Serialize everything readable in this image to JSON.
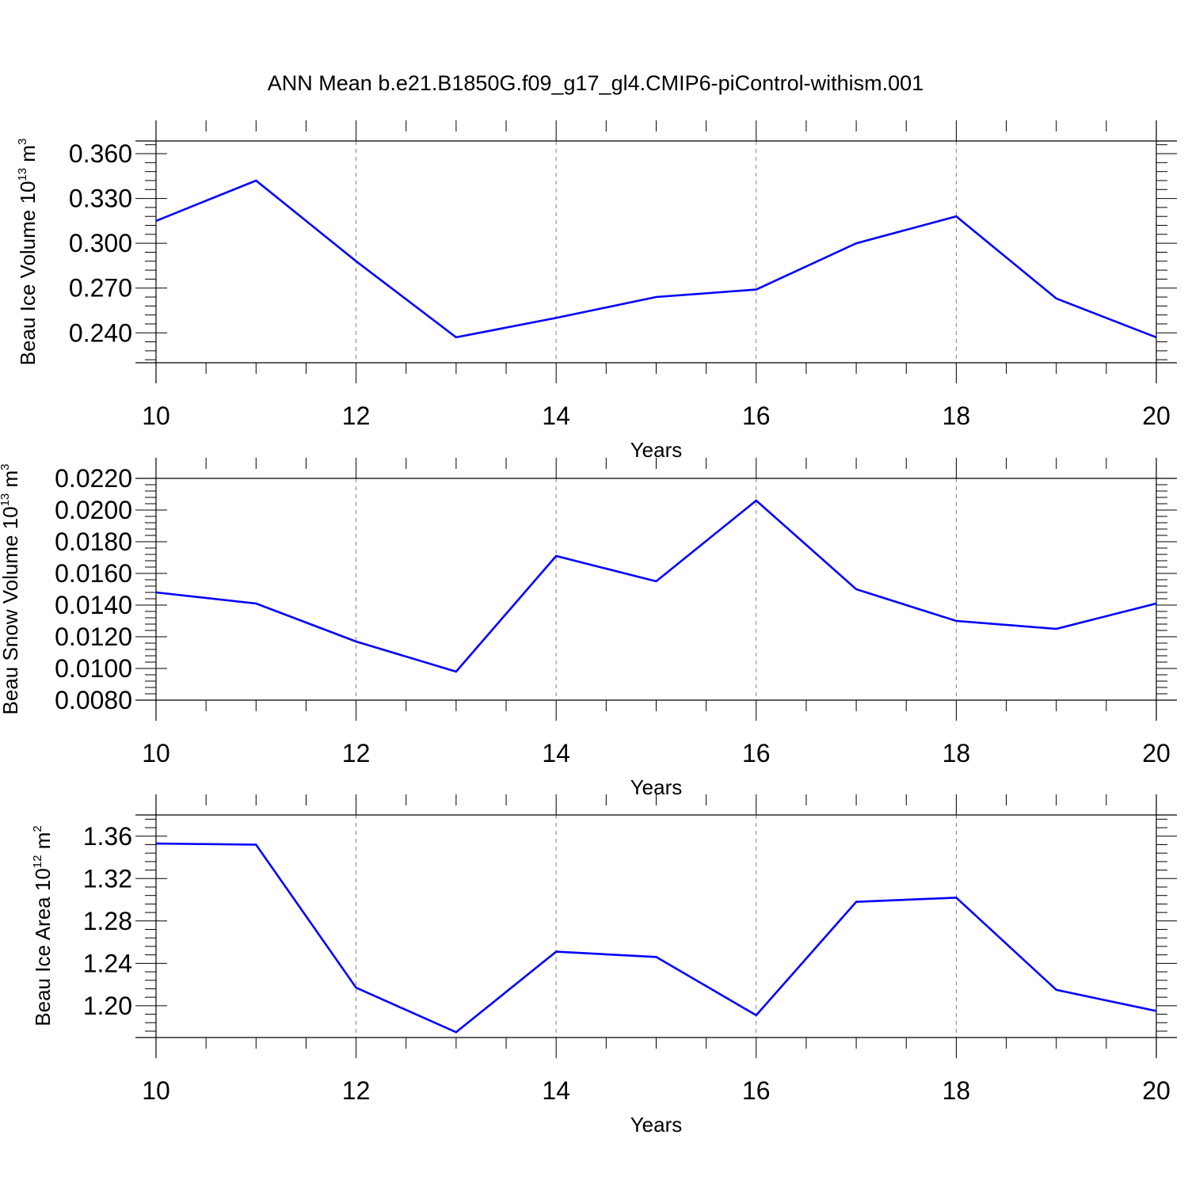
{
  "figure_title": "ANN Mean b.e21.B1850G.f09_g17_gl4.CMIP6-piControl-withism.001",
  "colors": {
    "line": "#0000ff",
    "axis": "#000000",
    "grid": "#808080"
  },
  "chart_data": [
    {
      "type": "line",
      "ylabel": {
        "text": "Beau Ice Volume 10",
        "exp": "13",
        "unit": " m",
        "unit_exp": "3"
      },
      "xlabel": "Years",
      "xlim": [
        10,
        20
      ],
      "ylim": [
        0.22,
        0.3685
      ],
      "yticks": [
        "0.240",
        "0.270",
        "0.300",
        "0.330",
        "0.360"
      ],
      "xticks": [
        "10",
        "12",
        "14",
        "16",
        "18",
        "20"
      ],
      "grid": "vertical dashed at major x ticks",
      "series": [
        {
          "x": [
            10,
            11,
            12,
            13,
            14,
            15,
            16,
            17,
            18,
            19,
            20
          ],
          "values": [
            0.315,
            0.342,
            0.288,
            0.237,
            0.25,
            0.264,
            0.269,
            0.3,
            0.318,
            0.263,
            0.237
          ]
        }
      ]
    },
    {
      "type": "line",
      "ylabel": {
        "text": "Beau Snow Volume 10",
        "exp": "13",
        "unit": " m",
        "unit_exp": "3"
      },
      "xlabel": "Years",
      "xlim": [
        10,
        20
      ],
      "ylim": [
        0.008,
        0.022
      ],
      "yticks": [
        "0.0080",
        "0.0100",
        "0.0120",
        "0.0140",
        "0.0160",
        "0.0180",
        "0.0200",
        "0.0220"
      ],
      "xticks": [
        "10",
        "12",
        "14",
        "16",
        "18",
        "20"
      ],
      "grid": "vertical dashed at major x ticks",
      "series": [
        {
          "x": [
            10,
            11,
            12,
            13,
            14,
            15,
            16,
            17,
            18,
            19,
            20
          ],
          "values": [
            0.0148,
            0.0141,
            0.0117,
            0.0098,
            0.0171,
            0.0155,
            0.0206,
            0.015,
            0.013,
            0.0125,
            0.0141
          ]
        }
      ]
    },
    {
      "type": "line",
      "ylabel": {
        "text": "Beau Ice Area 10",
        "exp": "12",
        "unit": " m",
        "unit_exp": "2"
      },
      "xlabel": "Years",
      "xlim": [
        10,
        20
      ],
      "ylim": [
        1.17,
        1.38
      ],
      "yticks": [
        "1.20",
        "1.24",
        "1.28",
        "1.32",
        "1.36"
      ],
      "xticks": [
        "10",
        "12",
        "14",
        "16",
        "18",
        "20"
      ],
      "grid": "vertical dashed at major x ticks",
      "series": [
        {
          "x": [
            10,
            11,
            12,
            13,
            14,
            15,
            16,
            17,
            18,
            19,
            20
          ],
          "values": [
            1.353,
            1.352,
            1.217,
            1.175,
            1.251,
            1.246,
            1.191,
            1.298,
            1.302,
            1.215,
            1.195
          ]
        }
      ]
    }
  ]
}
